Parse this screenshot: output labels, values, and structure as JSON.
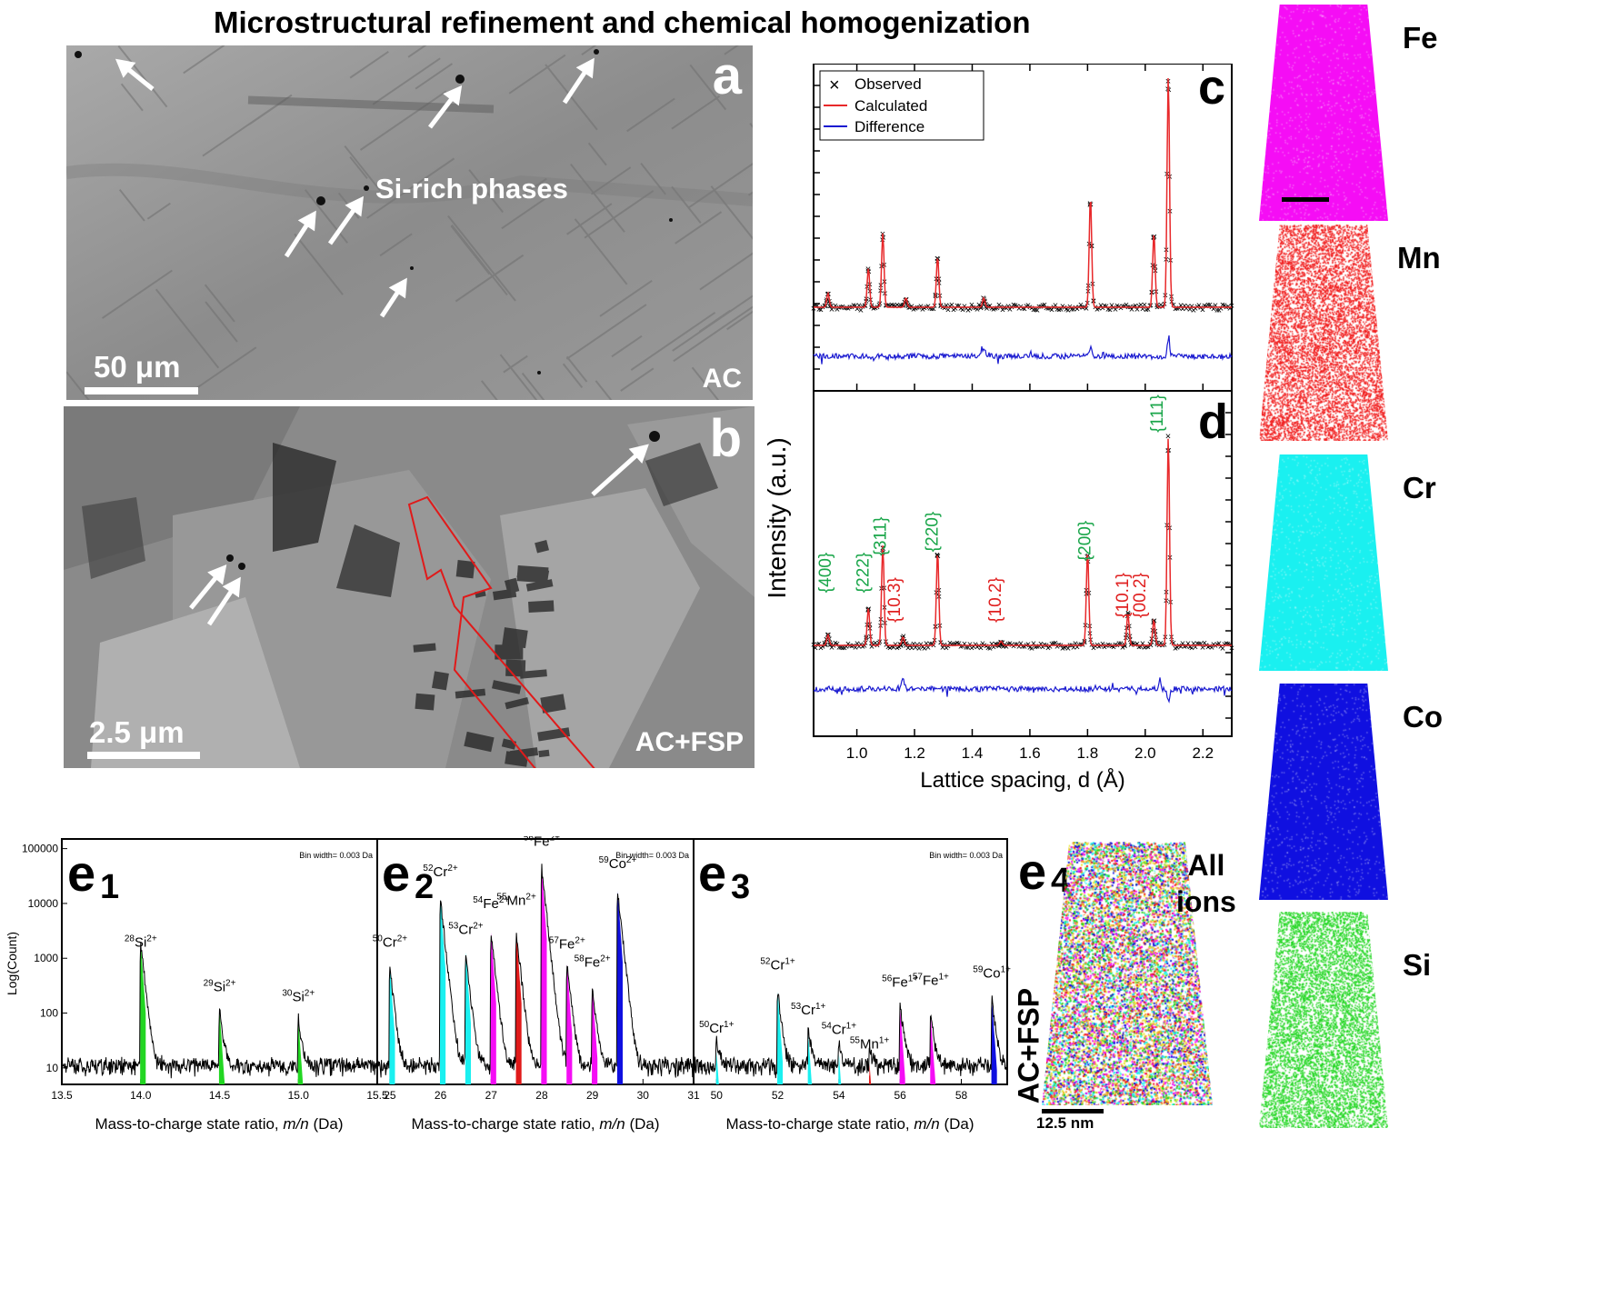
{
  "figure_title": "Microstructural refinement and chemical homogenization",
  "panel_a": {
    "letter": "a",
    "scale": "50 μm",
    "condition": "AC",
    "annotation": "Si-rich phases"
  },
  "panel_b": {
    "letter": "b",
    "scale": "2.5 μm",
    "condition": "AC+FSP"
  },
  "xrd": {
    "letter_c": "c",
    "letter_d": "d",
    "ylabel": "Intensity (a.u.)",
    "xlabel": "Lattice spacing, d (Å)",
    "legend": {
      "observed": "Observed",
      "calculated": "Calculated",
      "difference": "Difference"
    },
    "x_ticks": [
      "1.0",
      "1.2",
      "1.4",
      "1.6",
      "1.8",
      "2.0",
      "2.2"
    ],
    "fcc_labels": [
      "{400}",
      "{222}",
      "{311}",
      "{220}",
      "{200}",
      "{111}"
    ],
    "hcp_labels": [
      "{10.3}",
      "{10.2}",
      "{10.1}",
      "{00.2}"
    ],
    "colors": {
      "observed": "#000000",
      "calculated": "#e8282a",
      "difference": "#1a1ad0",
      "fcc": "#1aa64a",
      "hcp": "#e02020"
    }
  },
  "chart_data": [
    {
      "type": "line",
      "panel": "c",
      "xlabel": "Lattice spacing, d (Å)",
      "ylabel": "Intensity (a.u.)",
      "xlim": [
        0.85,
        2.3
      ],
      "series": [
        {
          "name": "Observed",
          "peaks_x": [
            0.9,
            1.04,
            1.09,
            1.17,
            1.28,
            1.44,
            1.81,
            2.03,
            2.08
          ],
          "peaks_rel": [
            0.06,
            0.17,
            0.32,
            0.04,
            0.22,
            0.04,
            0.48,
            0.32,
            1.0
          ]
        },
        {
          "name": "Calculated"
        },
        {
          "name": "Difference"
        }
      ]
    },
    {
      "type": "line",
      "panel": "d",
      "xlabel": "Lattice spacing, d (Å)",
      "ylabel": "Intensity (a.u.)",
      "xlim": [
        0.85,
        2.3
      ],
      "peaks_x": [
        0.9,
        1.04,
        1.09,
        1.16,
        1.28,
        1.5,
        1.8,
        1.94,
        2.03,
        2.08
      ],
      "peaks_rel": [
        0.05,
        0.18,
        0.48,
        0.04,
        0.45,
        0.02,
        0.45,
        0.15,
        0.12,
        1.0
      ],
      "labels": [
        "{400}",
        "{222}",
        "{311}",
        "{10.3}",
        "{220}",
        "{10.2}",
        "{200}",
        "{10.1}",
        "{00.2}",
        "{111}"
      ]
    },
    {
      "type": "line",
      "panel": "e1",
      "xlabel": "Mass-to-charge state ratio, m/n (Da)",
      "ylabel": "Log(Count)",
      "xlim": [
        13.5,
        15.5
      ],
      "log_y": true,
      "ylim": [
        5,
        100000
      ],
      "peaks": [
        {
          "x": 14.0,
          "y": 2000
        },
        {
          "x": 14.5,
          "y": 110
        },
        {
          "x": 15.0,
          "y": 75
        }
      ]
    },
    {
      "type": "line",
      "panel": "e2",
      "xlabel": "Mass-to-charge state ratio, m/n (Da)",
      "xlim": [
        24.8,
        31
      ],
      "log_y": true,
      "peaks": [
        {
          "x": 25.0,
          "y": 700
        },
        {
          "x": 26.0,
          "y": 12000
        },
        {
          "x": 26.5,
          "y": 1300
        },
        {
          "x": 27.0,
          "y": 3000
        },
        {
          "x": 27.5,
          "y": 3000
        },
        {
          "x": 28.0,
          "y": 45000
        },
        {
          "x": 28.5,
          "y": 800
        },
        {
          "x": 29.0,
          "y": 300
        },
        {
          "x": 29.5,
          "y": 17000
        }
      ]
    },
    {
      "type": "line",
      "panel": "e3",
      "xlabel": "Mass-to-charge state ratio, m/n (Da)",
      "xlim": [
        49.2,
        59.5
      ],
      "log_y": true,
      "peaks": [
        {
          "x": 50,
          "y": 20
        },
        {
          "x": 52,
          "y": 250
        },
        {
          "x": 53,
          "y": 40
        },
        {
          "x": 54,
          "y": 18
        },
        {
          "x": 55,
          "y": 12
        },
        {
          "x": 56,
          "y": 130
        },
        {
          "x": 57,
          "y": 90
        },
        {
          "x": 59,
          "y": 180
        }
      ]
    }
  ],
  "apt": {
    "e1": {
      "letter": "e",
      "sub": "1",
      "bin": "Bin width= 0.003 Da",
      "ylabel": "Log(Count)",
      "y_ticks": [
        "100000",
        "10000",
        "1000",
        "100",
        "10"
      ],
      "x_ticks": [
        "13.5",
        "14.0",
        "14.5",
        "15.0",
        "15.5"
      ],
      "peak_labels": [
        {
          "mass": "28",
          "ion": "Si",
          "charge": "2+"
        },
        {
          "mass": "29",
          "ion": "Si",
          "charge": "2+"
        },
        {
          "mass": "30",
          "ion": "Si",
          "charge": "2+"
        }
      ]
    },
    "e2": {
      "letter": "e",
      "sub": "2",
      "bin": "Bin width= 0.003 Da",
      "x_ticks": [
        "25",
        "26",
        "27",
        "28",
        "29",
        "30",
        "31"
      ],
      "peak_labels": [
        {
          "mass": "50",
          "ion": "Cr",
          "charge": "2+"
        },
        {
          "mass": "52",
          "ion": "Cr",
          "charge": "2+"
        },
        {
          "mass": "53",
          "ion": "Cr",
          "charge": "2+"
        },
        {
          "mass": "54",
          "ion": "Fe",
          "charge": "2+"
        },
        {
          "mass": "55",
          "ion": "Mn",
          "charge": "2+"
        },
        {
          "mass": "56",
          "ion": "Fe",
          "charge": "2+"
        },
        {
          "mass": "57",
          "ion": "Fe",
          "charge": "2+"
        },
        {
          "mass": "58",
          "ion": "Fe",
          "charge": "2+"
        },
        {
          "mass": "59",
          "ion": "Co",
          "charge": "2+"
        }
      ]
    },
    "e3": {
      "letter": "e",
      "sub": "3",
      "bin": "Bin width= 0.003 Da",
      "x_ticks": [
        "50",
        "52",
        "54",
        "56",
        "58"
      ],
      "peak_labels": [
        {
          "mass": "50",
          "ion": "Cr",
          "charge": "1+"
        },
        {
          "mass": "52",
          "ion": "Cr",
          "charge": "1+"
        },
        {
          "mass": "53",
          "ion": "Cr",
          "charge": "1+"
        },
        {
          "mass": "54",
          "ion": "Cr",
          "charge": "1+"
        },
        {
          "mass": "55",
          "ion": "Mn",
          "charge": "1+"
        },
        {
          "mass": "56",
          "ion": "Fe",
          "charge": "1+"
        },
        {
          "mass": "57",
          "ion": "Fe",
          "charge": "1+"
        },
        {
          "mass": "59",
          "ion": "Co",
          "charge": "1+"
        }
      ]
    },
    "xlabel_prefix": "Mass-to-charge state ratio, ",
    "xlabel_italic": "m/n",
    "xlabel_suffix": " (Da)",
    "e4": {
      "letter": "e",
      "sub": "4",
      "label_line1": "All",
      "label_line2": "ions",
      "side_label": "AC+FSP",
      "scale": "12.5 nm"
    }
  },
  "elements": [
    {
      "name": "Fe",
      "color": "#f50df5"
    },
    {
      "name": "Mn",
      "color": "#f01a1a"
    },
    {
      "name": "Cr",
      "color": "#1af0f0"
    },
    {
      "name": "Co",
      "color": "#1010e0"
    },
    {
      "name": "Si",
      "color": "#22d622"
    }
  ]
}
